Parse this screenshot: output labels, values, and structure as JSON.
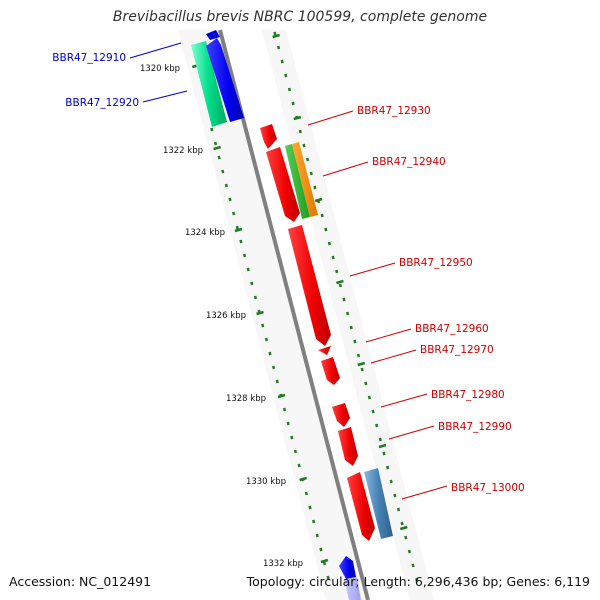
{
  "title": "Brevibacillus brevis NBRC 100599, complete genome",
  "footer": {
    "accession": "Accession: NC_012491",
    "summary": "Topology: circular; Length: 6,296,436 bp; Genes: 6,119"
  },
  "colors": {
    "backbone": "#808080",
    "track_dash": "#207a20",
    "kbp_text": "#111111",
    "blue_label": "#0000cc",
    "red_label": "#cc0000"
  },
  "ticks": [
    {
      "label": "1320 kbp",
      "position_kbp": 1320
    },
    {
      "label": "1322 kbp",
      "position_kbp": 1322
    },
    {
      "label": "1324 kbp",
      "position_kbp": 1324
    },
    {
      "label": "1326 kbp",
      "position_kbp": 1326
    },
    {
      "label": "1328 kbp",
      "position_kbp": 1328
    },
    {
      "label": "1330 kbp",
      "position_kbp": 1330
    },
    {
      "label": "1332 kbp",
      "position_kbp": 1332
    }
  ],
  "genes": [
    {
      "id": "BBR47_12910",
      "color": "#00cc77",
      "light": "#7fffd4",
      "strand": "forward"
    },
    {
      "id": "BBR47_12920",
      "color": "#0000dd",
      "light": "#4040ff",
      "strand": "forward"
    },
    {
      "id": "BBR47_12930",
      "color": "#ee0000",
      "light": "#ff3030",
      "strand": "forward"
    },
    {
      "id": "BBR47_12940",
      "color": "#ff8800",
      "light": "#22aa22",
      "strand": "forward"
    },
    {
      "id": "BBR47_12950",
      "color": "#ee0000",
      "light": "#ff3030",
      "strand": "forward"
    },
    {
      "id": "BBR47_12960",
      "color": "#ee0000",
      "light": "#ff3030",
      "strand": "forward"
    },
    {
      "id": "BBR47_12970",
      "color": "#ee0000",
      "light": "#ff3030",
      "strand": "forward"
    },
    {
      "id": "BBR47_12980",
      "color": "#ee0000",
      "light": "#ff3030",
      "strand": "forward"
    },
    {
      "id": "BBR47_12990",
      "color": "#ee0000",
      "light": "#ff3030",
      "strand": "forward"
    },
    {
      "id": "BBR47_13000",
      "color": "#4682b4",
      "light": "#7fb0d8",
      "strand": "forward"
    }
  ]
}
